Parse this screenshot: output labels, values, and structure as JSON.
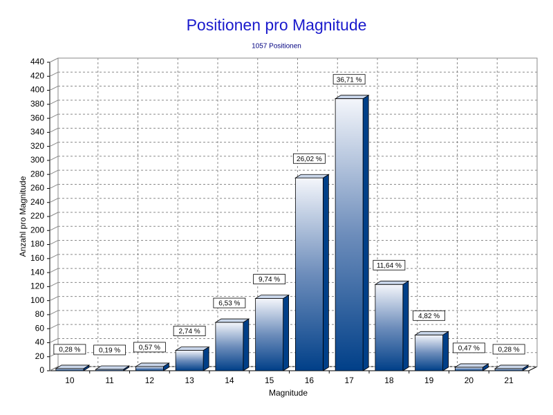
{
  "chart_data": {
    "type": "bar",
    "title": "Positionen pro Magnitude",
    "subtitle": "1057 Positionen",
    "x_label": "Magnitude",
    "y_label": "Anzahl pro Magnitude",
    "categories": [
      "10",
      "11",
      "12",
      "13",
      "14",
      "15",
      "16",
      "17",
      "18",
      "19",
      "20",
      "21"
    ],
    "values": [
      3,
      2,
      6,
      29,
      69,
      103,
      275,
      388,
      123,
      51,
      5,
      3
    ],
    "percent_labels": [
      "0,28 %",
      "0,19 %",
      "0,57 %",
      "2,74 %",
      "6,53 %",
      "9,74 %",
      "26,02 %",
      "36,71 %",
      "11,64 %",
      "4,82 %",
      "0,47 %",
      "0,28 %"
    ],
    "color": "#003f88",
    "ylim": [
      0,
      440
    ],
    "yticks": [
      0,
      20,
      40,
      60,
      80,
      100,
      120,
      140,
      160,
      180,
      200,
      220,
      240,
      260,
      280,
      300,
      320,
      340,
      360,
      380,
      400,
      420,
      440
    ],
    "grid": true
  }
}
